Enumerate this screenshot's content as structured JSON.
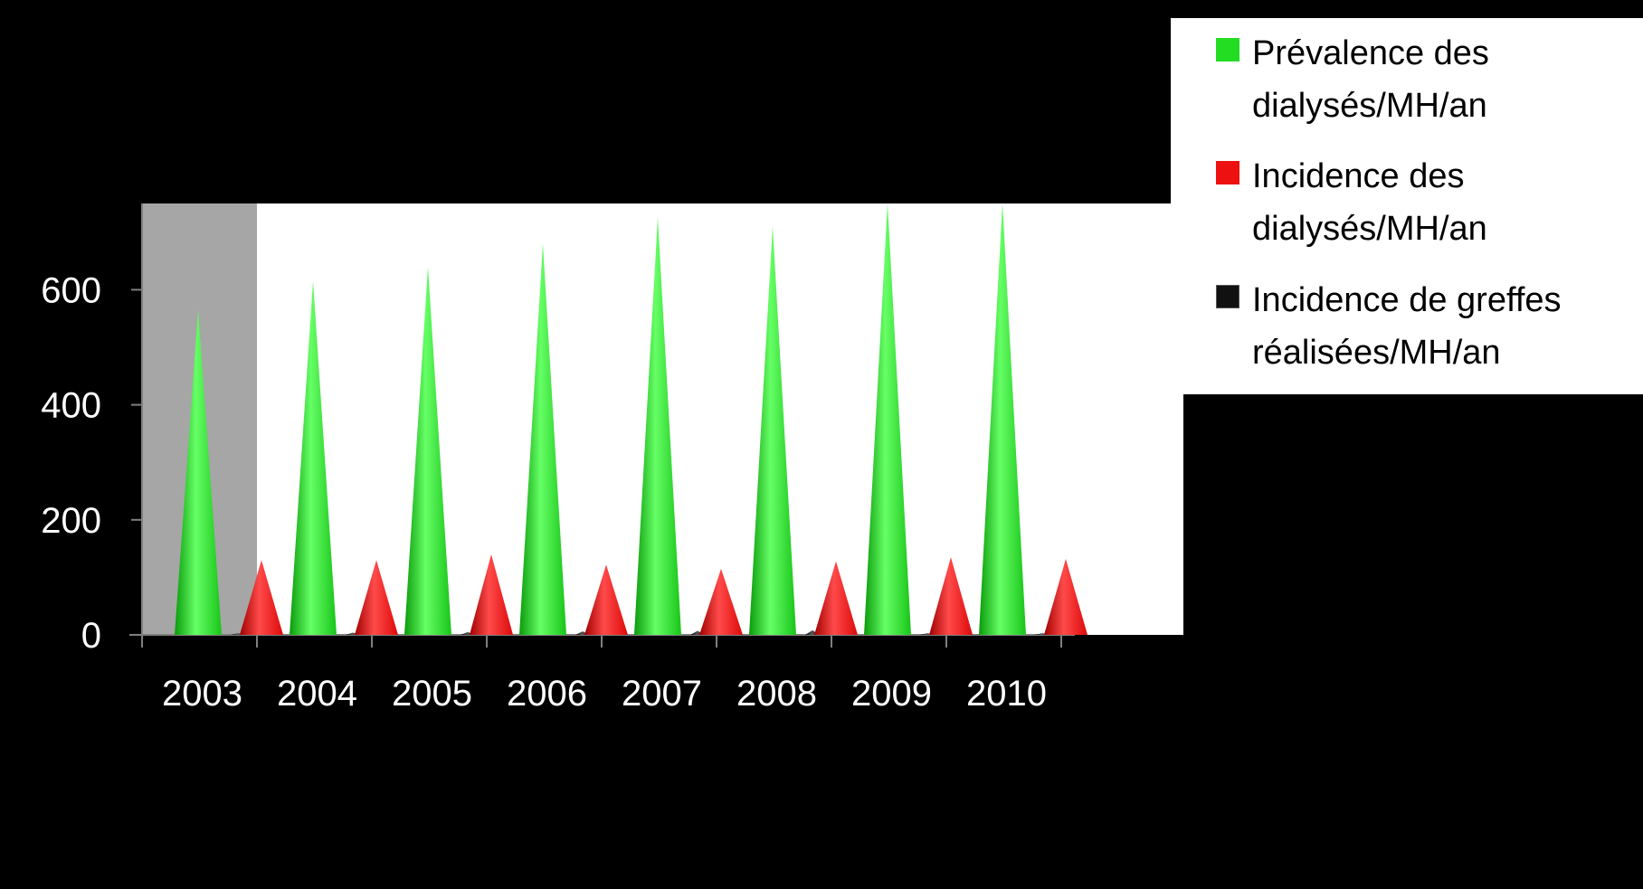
{
  "chart_data": {
    "type": "bar",
    "categories": [
      "2003",
      "2004",
      "2005",
      "2006",
      "2007",
      "2008",
      "2009",
      "2010"
    ],
    "series": [
      {
        "name": "Prévalence des dialysés/MH/an",
        "values": [
          565,
          615,
          640,
          680,
          725,
          710,
          750,
          750
        ],
        "color": "#22dd22"
      },
      {
        "name": "Incidence des dialysés/MH/an",
        "values": [
          130,
          130,
          140,
          122,
          115,
          128,
          135,
          132
        ],
        "color": "#ee1111"
      },
      {
        "name": "Incidence de greffes réalisées/MH/an",
        "values": [
          3,
          4,
          5,
          6,
          7,
          8,
          3,
          3
        ],
        "color": "#111111"
      }
    ],
    "y_ticks": [
      "0",
      "200",
      "400",
      "600"
    ],
    "ylim": [
      0,
      750
    ],
    "xlabel": "",
    "ylabel": "",
    "title": "",
    "legend_position": "top-right",
    "highlight_category": "2003",
    "colors": {
      "background": "#000000",
      "plot_area": "#ffffff",
      "highlight_band": "#a6a6a6",
      "legend_bg": "#ffffff",
      "tick_text": "#ffffff"
    }
  },
  "legend": {
    "items": [
      {
        "label": "Prévalence des dialysés/MH/an",
        "icon": "green-square-icon",
        "color": "#22dd22"
      },
      {
        "label": "Incidence des dialysés/MH/an",
        "icon": "red-square-icon",
        "color": "#ee1111"
      },
      {
        "label": "Incidence de greffes réalisées/MH/an",
        "icon": "black-square-icon",
        "color": "#111111"
      }
    ]
  }
}
